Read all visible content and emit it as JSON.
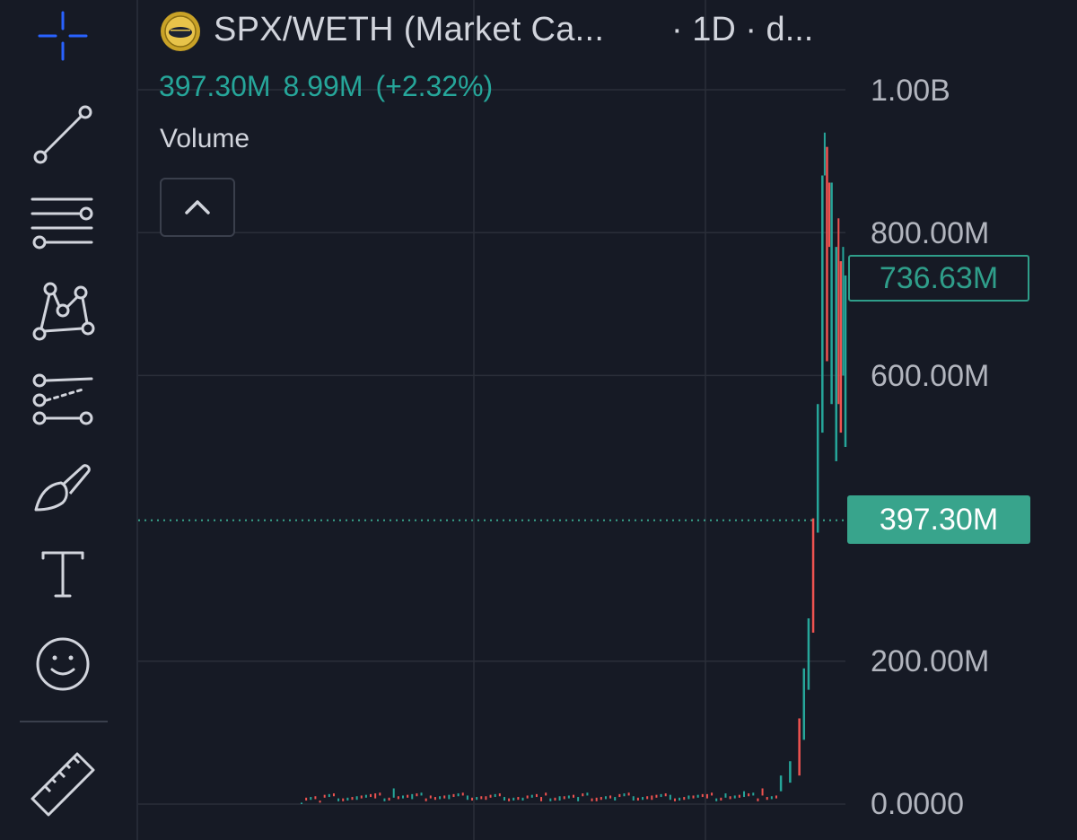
{
  "toolbar": {
    "tools": [
      {
        "name": "crosshair-icon",
        "active": true
      },
      {
        "name": "trend-line-icon"
      },
      {
        "name": "horizontal-lines-icon"
      },
      {
        "name": "pattern-icon"
      },
      {
        "name": "forecast-icon"
      },
      {
        "name": "brush-icon"
      },
      {
        "name": "text-icon"
      },
      {
        "name": "emoji-icon"
      },
      {
        "name": "ruler-icon"
      }
    ],
    "active_color": "#2962ff",
    "icon_color": "#d1d4dc"
  },
  "legend": {
    "title": "SPX/WETH (Market Ca...",
    "interval": "· 1D · d...",
    "value": "397.30M",
    "change": "8.99M",
    "change_pct": "(+2.32%)",
    "volume_label": "Volume"
  },
  "price_axis": {
    "labels": [
      "1.00B",
      "800.00M",
      "600.00M",
      "200.00M",
      "0.0000"
    ],
    "high_label": "736.63M",
    "current_label": "397.30M"
  },
  "colors": {
    "background": "#161a25",
    "up": "#26a69a",
    "down": "#ef5350",
    "grid": "#2a2e39",
    "text": "#d1d4dc"
  },
  "chart_data": {
    "type": "candlestick",
    "title": "SPX/WETH (Market Ca...",
    "interval": "1D",
    "ylim": [
      0,
      1000000000
    ],
    "y_ticks": [
      0,
      200000000,
      600000000,
      800000000,
      1000000000
    ],
    "last_value": 397300000,
    "high_marker": 736630000,
    "grid": true,
    "series": [
      {
        "name": "Market Cap",
        "points": [
          [
            0,
            0,
            2000000
          ],
          [
            4,
            2000000,
            5000000
          ],
          [
            8,
            4000000,
            8000000
          ],
          [
            12,
            6000000,
            11000000
          ],
          [
            16,
            8000000,
            15000000
          ],
          [
            20,
            9000000,
            22000000
          ],
          [
            24,
            7000000,
            14000000
          ],
          [
            28,
            8000000,
            12000000
          ],
          [
            32,
            7000000,
            13000000
          ],
          [
            36,
            6000000,
            12000000
          ],
          [
            40,
            6000000,
            11000000
          ],
          [
            44,
            5000000,
            10000000
          ],
          [
            48,
            5000000,
            9000000
          ],
          [
            52,
            4000000,
            10000000
          ],
          [
            56,
            5000000,
            11000000
          ],
          [
            60,
            4000000,
            10000000
          ],
          [
            64,
            4000000,
            9000000
          ],
          [
            68,
            5000000,
            10000000
          ],
          [
            72,
            5000000,
            11000000
          ],
          [
            76,
            6000000,
            12000000
          ],
          [
            80,
            6000000,
            13000000
          ],
          [
            84,
            7000000,
            12000000
          ],
          [
            88,
            8000000,
            14000000
          ],
          [
            92,
            9000000,
            15000000
          ],
          [
            96,
            10000000,
            18000000
          ],
          [
            100,
            12000000,
            22000000
          ],
          [
            104,
            18000000,
            40000000
          ],
          [
            106,
            30000000,
            60000000
          ],
          [
            108,
            40000000,
            120000000
          ],
          [
            109,
            90000000,
            190000000
          ],
          [
            110,
            160000000,
            260000000
          ],
          [
            111,
            240000000,
            400000000
          ],
          [
            112,
            380000000,
            560000000
          ],
          [
            113,
            520000000,
            880000000
          ],
          [
            114,
            620000000,
            920000000
          ],
          [
            115,
            560000000,
            870000000
          ],
          [
            116,
            480000000,
            780000000
          ],
          [
            117,
            520000000,
            760000000
          ],
          [
            118,
            500000000,
            740000000
          ]
        ]
      }
    ]
  }
}
